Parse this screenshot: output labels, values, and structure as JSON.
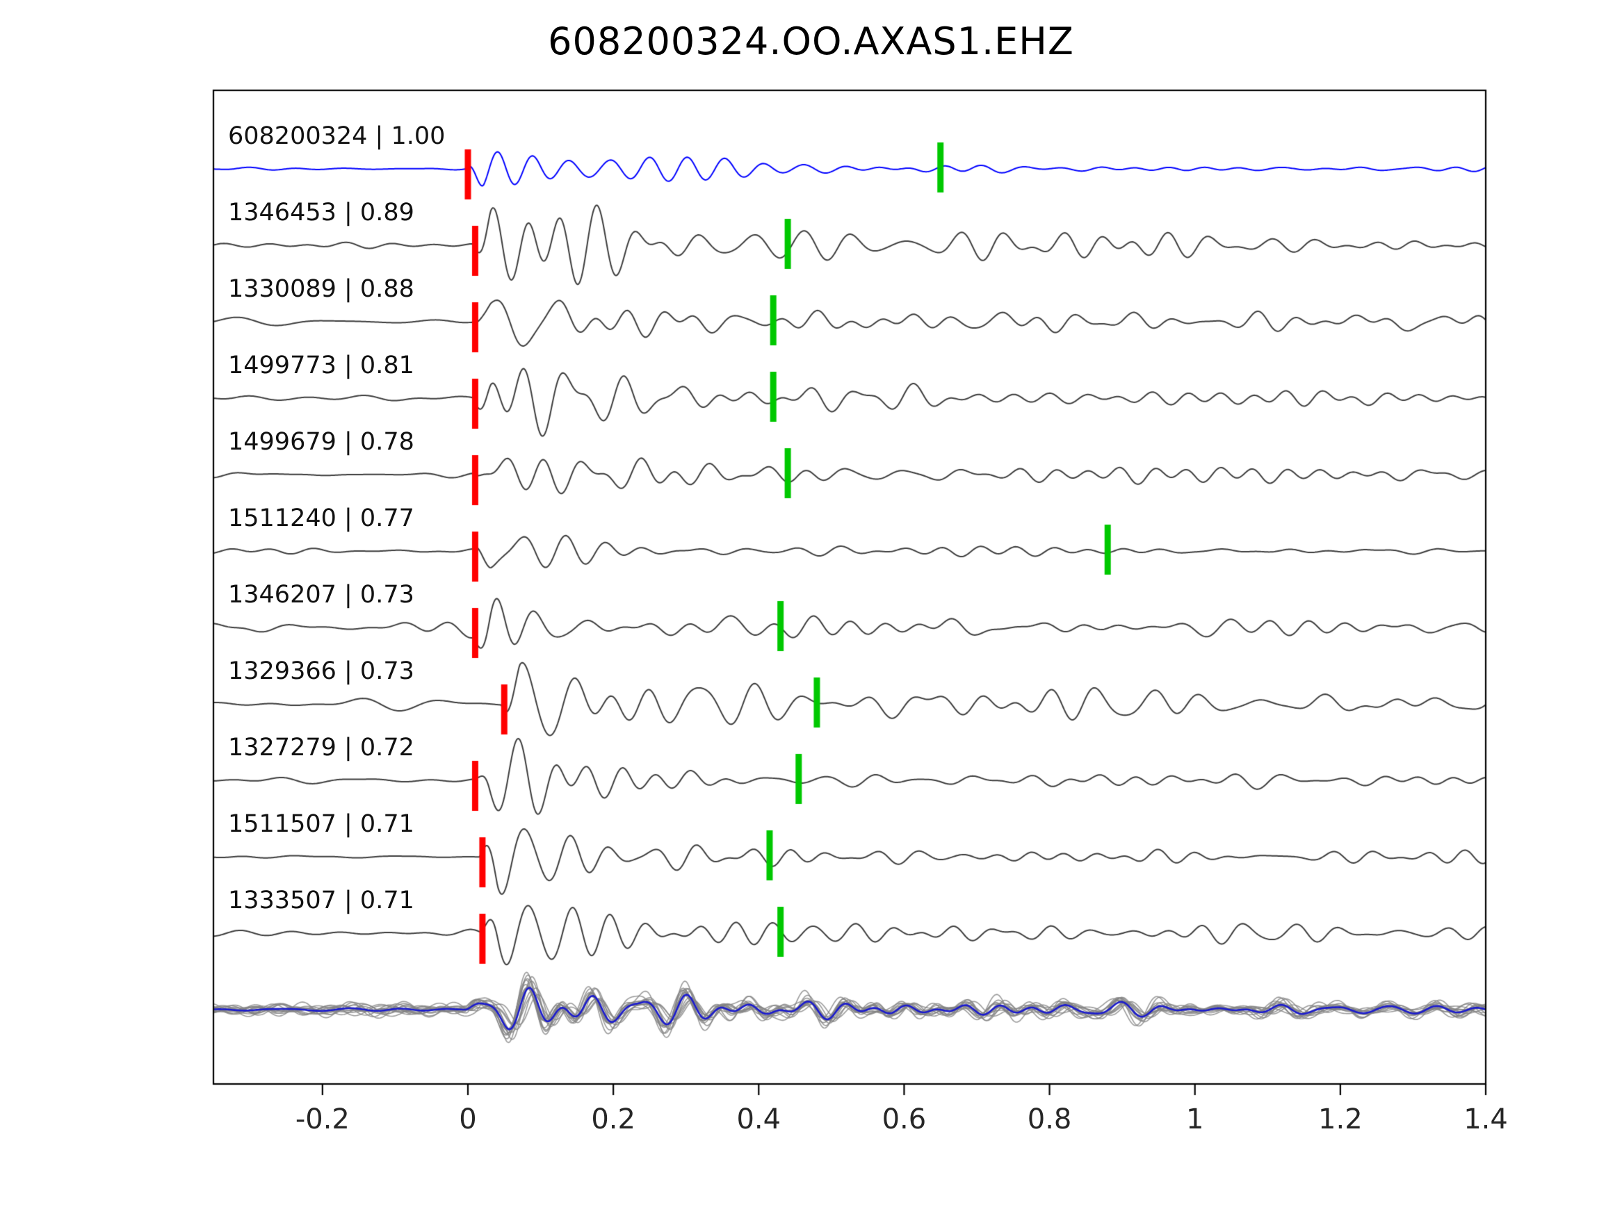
{
  "title": "608200324.OO.AXAS1.EHZ",
  "chart_data": {
    "type": "line",
    "title": "608200324.OO.AXAS1.EHZ",
    "description": "Stacked seismic waveform traces: template event (blue) compared with detected events (dark gray), red P-pick markers and green secondary pick markers, bottom panel shows all aligned waveforms overlaid (gray) with stacked mean (blue).",
    "xlim": [
      -0.35,
      1.4
    ],
    "xticks": [
      "-0.2",
      "0",
      "0.2",
      "0.4",
      "0.6",
      "0.8",
      "1",
      "1.2",
      "1.4"
    ],
    "xtick_values": [
      -0.2,
      0,
      0.2,
      0.4,
      0.6,
      0.8,
      1,
      1.2,
      1.4
    ],
    "grid": false,
    "legend": "none",
    "colors": {
      "template_trace": "#0000ff",
      "detection_trace": "#3c3c3c",
      "stack_member": "#8a8a8a",
      "stack_mean": "#1a1acd",
      "p_pick_marker": "#ff0000",
      "s_pick_marker": "#00c800",
      "axis": "#000000",
      "tick_label": "#262626"
    },
    "traces": [
      {
        "label": "608200324 | 1.00",
        "event_id": "608200324",
        "correlation": "1.00",
        "kind": "template",
        "p_pick": 0.0,
        "s_pick": 0.65
      },
      {
        "label": "1346453 | 0.89",
        "event_id": "1346453",
        "correlation": "0.89",
        "kind": "detection",
        "p_pick": 0.01,
        "s_pick": 0.44
      },
      {
        "label": "1330089 | 0.88",
        "event_id": "1330089",
        "correlation": "0.88",
        "kind": "detection",
        "p_pick": 0.01,
        "s_pick": 0.42
      },
      {
        "label": "1499773 | 0.81",
        "event_id": "1499773",
        "correlation": "0.81",
        "kind": "detection",
        "p_pick": 0.01,
        "s_pick": 0.42
      },
      {
        "label": "1499679 | 0.78",
        "event_id": "1499679",
        "correlation": "0.78",
        "kind": "detection",
        "p_pick": 0.01,
        "s_pick": 0.44
      },
      {
        "label": "1511240 | 0.77",
        "event_id": "1511240",
        "correlation": "0.77",
        "kind": "detection",
        "p_pick": 0.01,
        "s_pick": 0.88
      },
      {
        "label": "1346207 | 0.73",
        "event_id": "1346207",
        "correlation": "0.73",
        "kind": "detection",
        "p_pick": 0.01,
        "s_pick": 0.43
      },
      {
        "label": "1329366 | 0.73",
        "event_id": "1329366",
        "correlation": "0.73",
        "kind": "detection",
        "p_pick": 0.05,
        "s_pick": 0.48
      },
      {
        "label": "1327279 | 0.72",
        "event_id": "1327279",
        "correlation": "0.72",
        "kind": "detection",
        "p_pick": 0.01,
        "s_pick": 0.455
      },
      {
        "label": "1511507 | 0.71",
        "event_id": "1511507",
        "correlation": "0.71",
        "kind": "detection",
        "p_pick": 0.02,
        "s_pick": 0.415
      },
      {
        "label": "1333507 | 0.71",
        "event_id": "1333507",
        "correlation": "0.71",
        "kind": "detection",
        "p_pick": 0.02,
        "s_pick": 0.43
      }
    ],
    "stack": {
      "overlaid_members": 14
    }
  }
}
